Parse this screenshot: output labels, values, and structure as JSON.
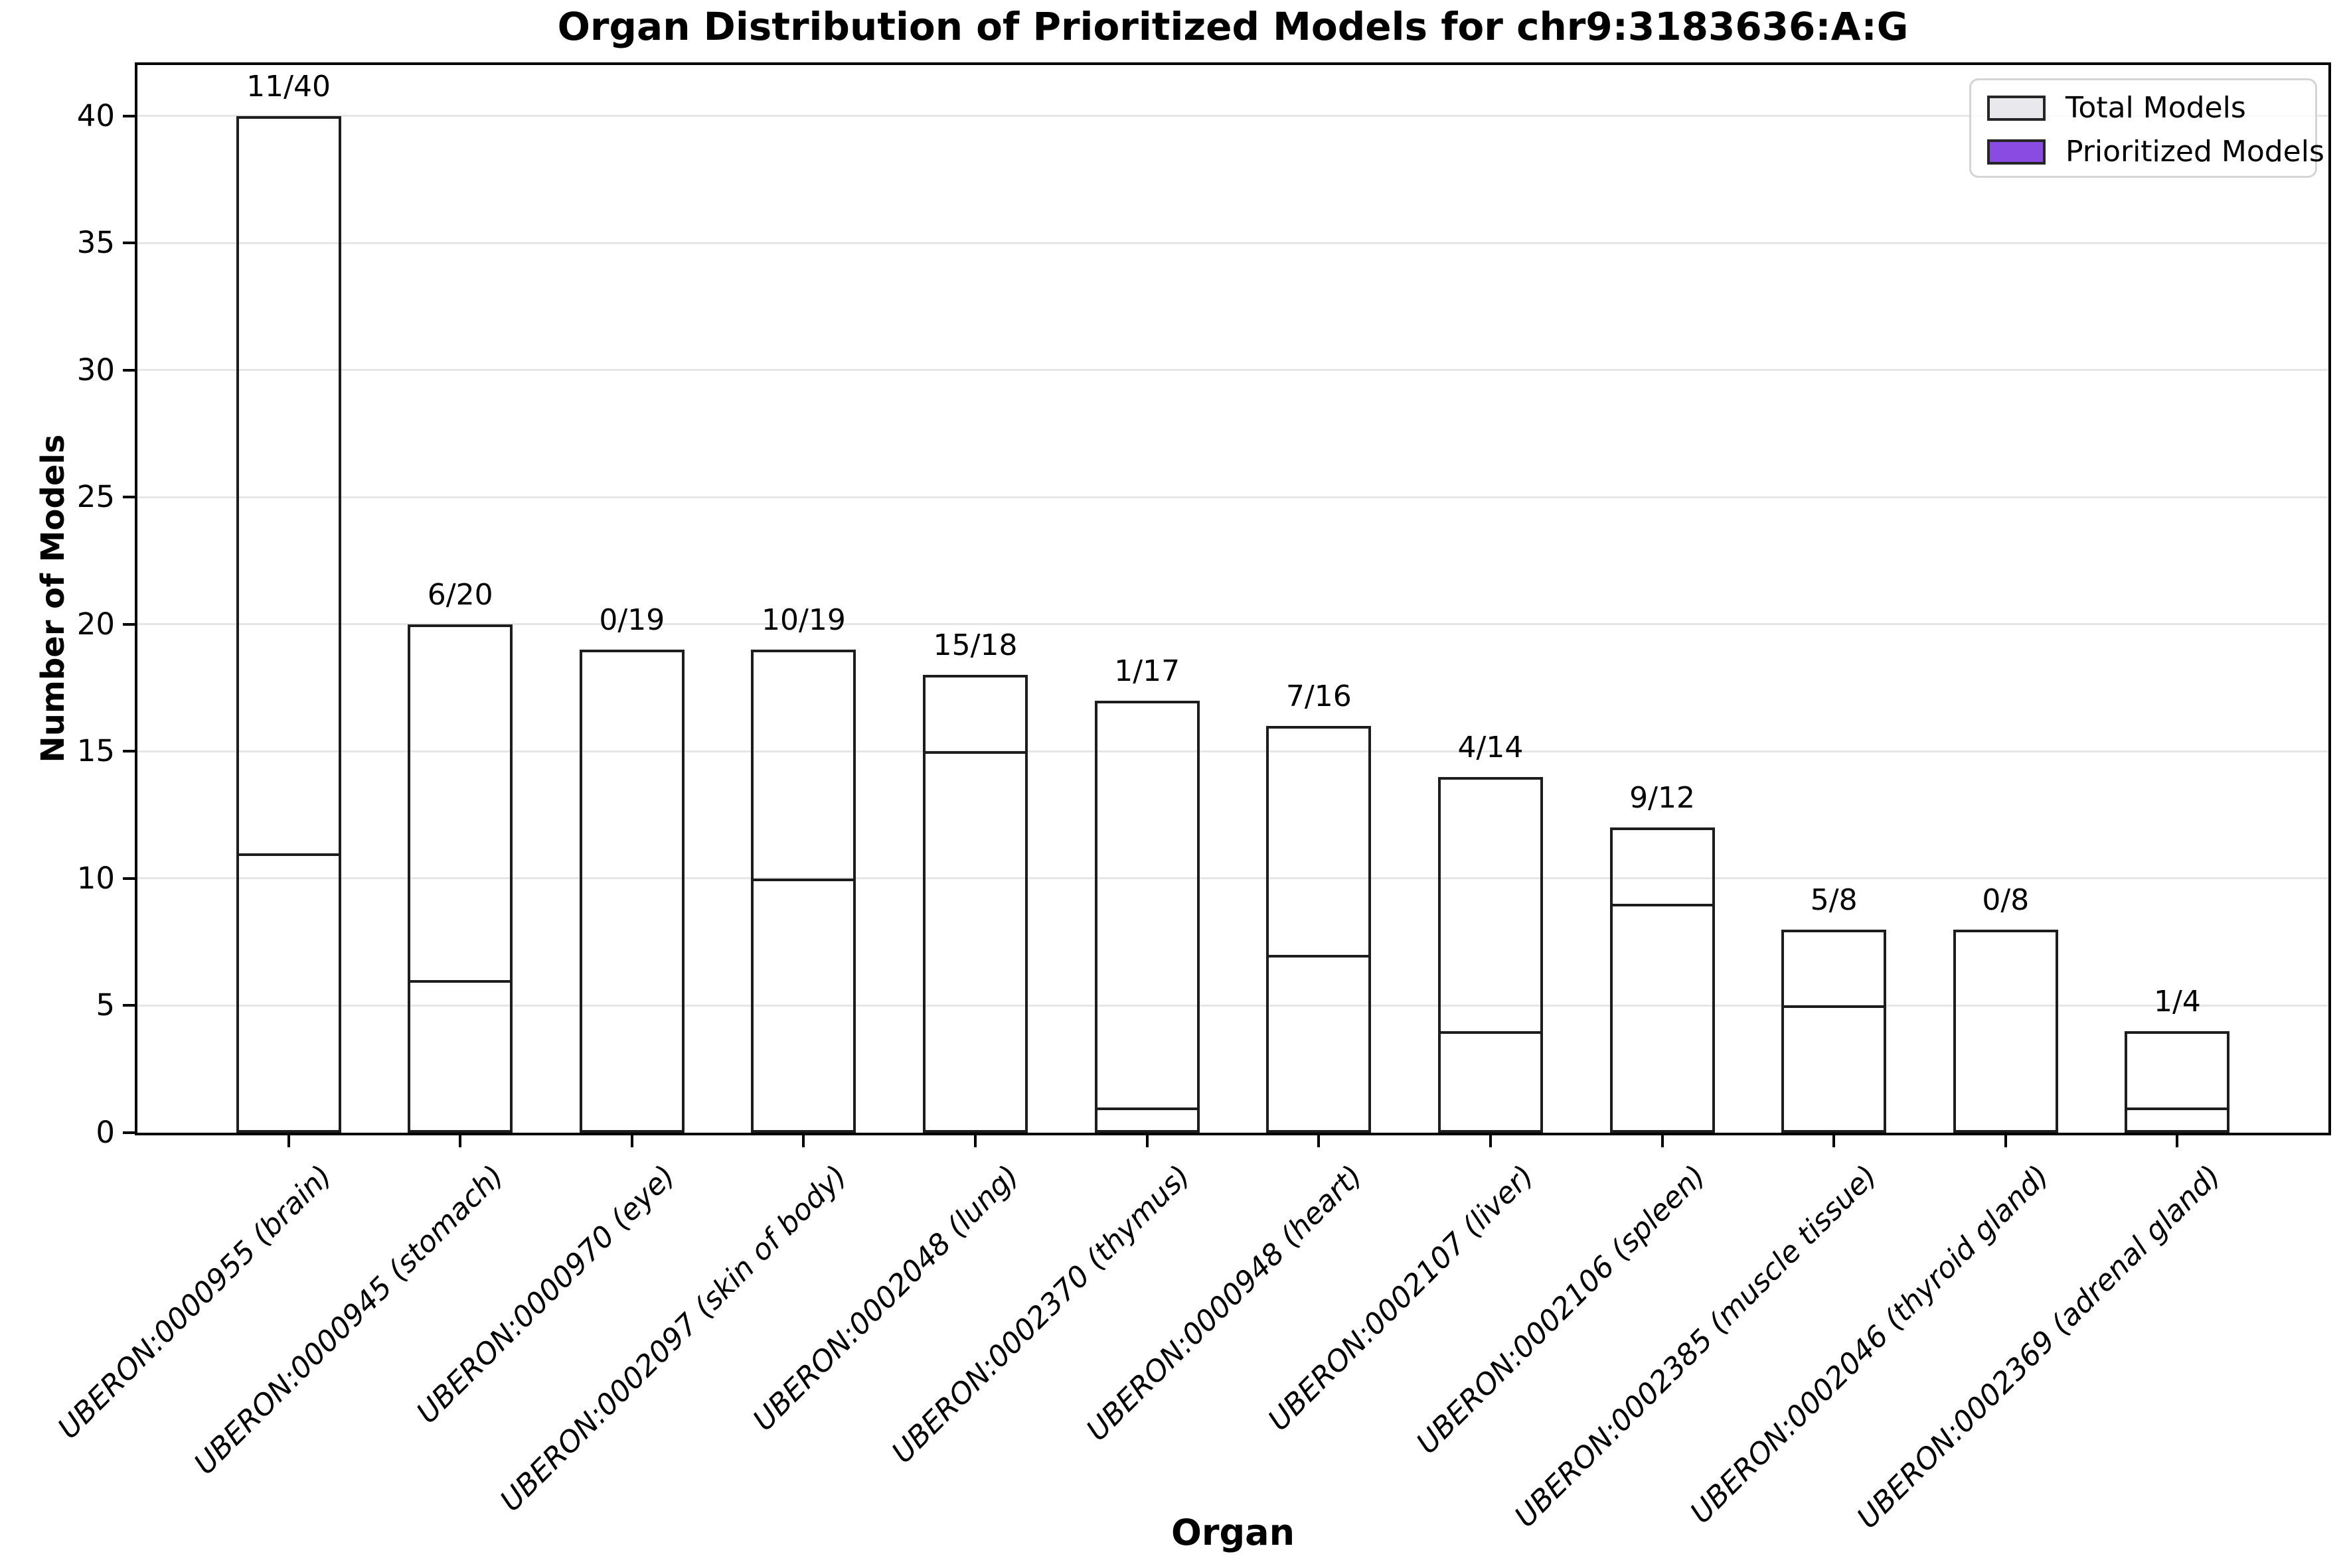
{
  "chart_data": {
    "type": "bar",
    "title": "Organ Distribution of Prioritized Models for chr9:3183636:A:G",
    "xlabel": "Organ",
    "ylabel": "Number of Models",
    "ylim": [
      0,
      42
    ],
    "yticks": [
      0,
      5,
      10,
      15,
      20,
      25,
      30,
      35,
      40
    ],
    "grid": "horizontal",
    "legend_position": "upper right",
    "bar_style": "overlaid",
    "categories": [
      "UBERON:0000955 (brain)",
      "UBERON:0000945 (stomach)",
      "UBERON:0000970 (eye)",
      "UBERON:0002097 (skin of body)",
      "UBERON:0002048 (lung)",
      "UBERON:0002370 (thymus)",
      "UBERON:0000948 (heart)",
      "UBERON:0002107 (liver)",
      "UBERON:0002106 (spleen)",
      "UBERON:0002385 (muscle tissue)",
      "UBERON:0002046 (thyroid gland)",
      "UBERON:0002369 (adrenal gland)"
    ],
    "series": [
      {
        "name": "Total Models",
        "color": "#e8e8ed",
        "edge_color": "#1d1d1d",
        "values": [
          40,
          20,
          19,
          19,
          18,
          17,
          16,
          14,
          12,
          8,
          8,
          4
        ]
      },
      {
        "name": "Prioritized Models",
        "color": "#8a4be2",
        "edge_color": "#1d1d1d",
        "values": [
          11,
          6,
          0,
          10,
          15,
          1,
          7,
          4,
          9,
          5,
          0,
          1
        ]
      }
    ],
    "bar_labels": [
      "11/40",
      "6/20",
      "0/19",
      "10/19",
      "15/18",
      "1/17",
      "7/16",
      "4/14",
      "9/12",
      "5/8",
      "0/8",
      "1/4"
    ]
  }
}
